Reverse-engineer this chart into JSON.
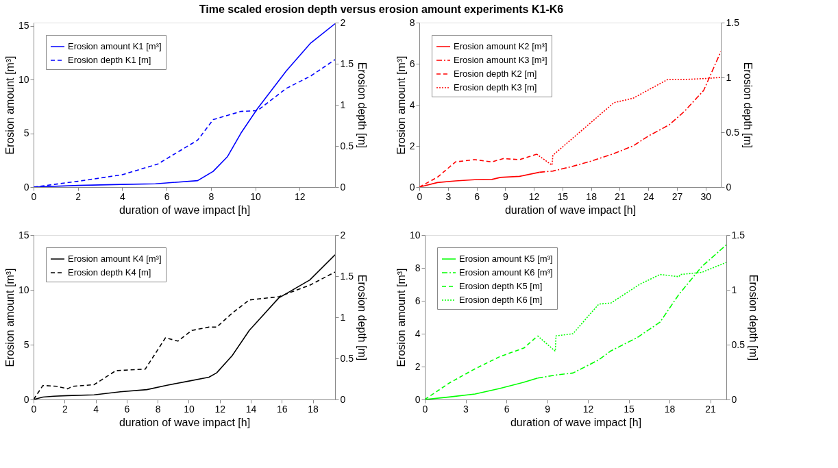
{
  "chart_data": [
    {
      "type": "line",
      "title": "Time scaled erosion depth versus erosion amount experiments K1-K6",
      "xlabel": "duration of wave impact [h]",
      "ylabel": "Erosion amount [m³]",
      "y2label": "Erosion depth [m]",
      "xlim": [
        0,
        13.6
      ],
      "xticks": [
        0,
        2,
        4,
        6,
        8,
        10,
        12
      ],
      "ylim": [
        0,
        15.3
      ],
      "yticks": [
        0,
        5,
        10,
        15
      ],
      "y2lim": [
        0,
        2
      ],
      "y2ticks": [
        0,
        0.5,
        1,
        1.5,
        2
      ],
      "grid": false,
      "legend": "top left",
      "series": [
        {
          "name": "Erosion amount K1 [m³]",
          "color": "#0000ff",
          "line_style": "solid",
          "x": [
            0,
            2,
            4,
            5.5,
            7.4,
            8.1,
            8.75,
            9.35,
            10.1,
            11.4,
            12.5,
            13.6
          ],
          "values": [
            0,
            0.15,
            0.25,
            0.3,
            0.6,
            1.46,
            2.84,
            5.0,
            7.3,
            10.8,
            13.4,
            15.2
          ]
        },
        {
          "name": "Erosion depth K1 [m]",
          "color": "#0000ff",
          "line_style": "dashed",
          "axis": "y2",
          "x": [
            0,
            2,
            4,
            5.6,
            7.4,
            8.1,
            9.35,
            10.1,
            11.4,
            12.5,
            13.6
          ],
          "values": [
            0,
            0.07,
            0.15,
            0.28,
            0.57,
            0.82,
            0.92,
            0.93,
            1.2,
            1.35,
            1.55
          ]
        }
      ]
    },
    {
      "type": "line",
      "xlabel": "duration of wave impact [h]",
      "ylabel": "Erosion amount [m³]",
      "y2label": "Erosion depth [m]",
      "xlim": [
        0,
        31.6
      ],
      "xticks": [
        0,
        3,
        6,
        9,
        12,
        15,
        18,
        21,
        24,
        27,
        30
      ],
      "ylim": [
        0,
        8
      ],
      "yticks": [
        0,
        2,
        4,
        6,
        8
      ],
      "y2lim": [
        0,
        1.5
      ],
      "y2ticks": [
        0,
        0.5,
        1,
        1.5
      ],
      "grid": false,
      "legend": "top left",
      "series": [
        {
          "name": "Erosion amount K2 [m³]",
          "color": "#ff0000",
          "line_style": "solid",
          "x": [
            0,
            1.9,
            3.8,
            5.8,
            7.6,
            8.5,
            10.5,
            12.6
          ],
          "values": [
            0,
            0.22,
            0.3,
            0.36,
            0.37,
            0.47,
            0.52,
            0.72
          ]
        },
        {
          "name": "Erosion amount K3 [m³]",
          "color": "#ff0000",
          "line_style": "dashdot",
          "x": [
            12.6,
            14,
            16,
            18,
            20.4,
            22.4,
            24,
            26.2,
            27.8,
            29.8,
            31.6
          ],
          "values": [
            0.72,
            0.78,
            1.0,
            1.26,
            1.63,
            2.0,
            2.48,
            3.03,
            3.69,
            4.7,
            6.59
          ]
        },
        {
          "name": "Erosion depth K2 [m]",
          "color": "#ff0000",
          "line_style": "dashed",
          "axis": "y2",
          "x": [
            0,
            1.9,
            3.8,
            5.8,
            7.6,
            8.8,
            10.5,
            12.3
          ],
          "values": [
            0,
            0.09,
            0.23,
            0.25,
            0.23,
            0.26,
            0.25,
            0.3
          ]
        },
        {
          "name": "Erosion depth K3 [m]",
          "color": "#ff0000",
          "line_style": "dotted",
          "axis": "y2",
          "x": [
            12.3,
            13.9,
            14,
            20.4,
            22.4,
            26,
            27.5,
            30,
            31.6
          ],
          "values": [
            0.3,
            0.2,
            0.29,
            0.77,
            0.81,
            0.98,
            0.98,
            0.99,
            1.0
          ]
        }
      ]
    },
    {
      "type": "line",
      "xlabel": "duration of wave impact [h]",
      "ylabel": "Erosion amount [m³]",
      "y2label": "Erosion depth [m]",
      "xlim": [
        0,
        19.43
      ],
      "xticks": [
        0,
        2,
        4,
        6,
        8,
        10,
        12,
        14,
        16,
        18
      ],
      "ylim": [
        0,
        15
      ],
      "yticks": [
        0,
        5,
        10,
        15
      ],
      "y2lim": [
        0,
        2
      ],
      "y2ticks": [
        0,
        0.5,
        1,
        1.5,
        2
      ],
      "grid": false,
      "legend": "top left",
      "series": [
        {
          "name": "Erosion amount K4 [m³]",
          "color": "#000000",
          "line_style": "solid",
          "x": [
            0,
            0.6,
            1.3,
            2.2,
            3.9,
            5.6,
            7.3,
            8.6,
            9.9,
            11.3,
            11.8,
            12.8,
            13.9,
            15.8,
            17.8,
            19.43
          ],
          "values": [
            0,
            0.22,
            0.3,
            0.35,
            0.42,
            0.7,
            0.9,
            1.3,
            1.65,
            2.03,
            2.43,
            4.0,
            6.3,
            9.26,
            10.9,
            13.2
          ]
        },
        {
          "name": "Erosion depth K4 [m]",
          "color": "#000000",
          "line_style": "dashed",
          "axis": "y2",
          "x": [
            0,
            0.6,
            1.5,
            2.2,
            2.5,
            3.9,
            5.3,
            7.2,
            8.5,
            9.3,
            10.2,
            11.3,
            11.8,
            12.8,
            13.9,
            15.8,
            17.8,
            19.43
          ],
          "values": [
            0,
            0.17,
            0.16,
            0.13,
            0.16,
            0.18,
            0.35,
            0.37,
            0.75,
            0.71,
            0.84,
            0.88,
            0.88,
            1.05,
            1.21,
            1.25,
            1.39,
            1.55
          ]
        }
      ]
    },
    {
      "type": "line",
      "xlabel": "duration of wave impact [h]",
      "ylabel": "Erosion amount [m³]",
      "y2label": "Erosion depth [m]",
      "xlim": [
        0,
        22.18
      ],
      "xticks": [
        0,
        3,
        6,
        9,
        12,
        15,
        18,
        21
      ],
      "ylim": [
        0,
        10
      ],
      "yticks": [
        0,
        2,
        4,
        6,
        8,
        10
      ],
      "y2lim": [
        0,
        1.5
      ],
      "y2ticks": [
        0,
        0.5,
        1,
        1.5
      ],
      "grid": false,
      "legend": "top left",
      "series": [
        {
          "name": "Erosion amount K5 [m³]",
          "color": "#00ff00",
          "line_style": "solid",
          "x": [
            0,
            1.8,
            3.7,
            5.5,
            7.3,
            8.3
          ],
          "values": [
            0,
            0.15,
            0.33,
            0.67,
            1.05,
            1.3
          ]
        },
        {
          "name": "Erosion amount K6 [m³]",
          "color": "#00ff00",
          "line_style": "dashdot",
          "x": [
            8.3,
            9.6,
            10.9,
            12.8,
            13.7,
            15.6,
            17.3,
            18.7,
            20.4,
            22.18
          ],
          "values": [
            1.3,
            1.48,
            1.61,
            2.41,
            2.96,
            3.75,
            4.7,
            6.4,
            8.1,
            9.4
          ]
        },
        {
          "name": "Erosion depth K5 [m]",
          "color": "#00ff00",
          "line_style": "dashed",
          "axis": "y2",
          "x": [
            0,
            1.8,
            3.7,
            5.5,
            7.3,
            8.3
          ],
          "values": [
            0,
            0.15,
            0.28,
            0.39,
            0.47,
            0.58
          ]
        },
        {
          "name": "Erosion depth K6 [m]",
          "color": "#00ff00",
          "line_style": "dotted",
          "axis": "y2",
          "x": [
            8.3,
            9.6,
            9.65,
            10.9,
            12.8,
            13.7,
            15.8,
            17.3,
            18.7,
            18.8,
            20.4,
            22.18
          ],
          "values": [
            0.58,
            0.44,
            0.58,
            0.6,
            0.87,
            0.88,
            1.05,
            1.14,
            1.12,
            1.14,
            1.16,
            1.25
          ]
        }
      ]
    }
  ]
}
